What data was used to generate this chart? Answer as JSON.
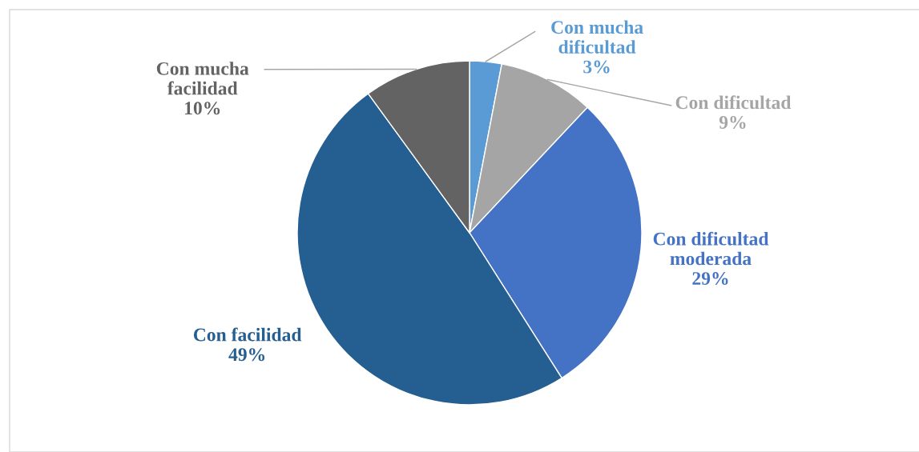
{
  "chart_data": {
    "type": "pie",
    "categories": [
      "Con mucha\ndificultad",
      "Con dificultad",
      "Con dificultad\nmoderada",
      "Con facilidad",
      "Con mucha\nfacilidad"
    ],
    "values": [
      3,
      9,
      29,
      49,
      10
    ],
    "colors": [
      "#5b9bd5",
      "#a5a5a5",
      "#4472c4",
      "#255e91",
      "#636363"
    ],
    "value_labels": [
      "3%",
      "9%",
      "29%",
      "49%",
      "10%"
    ],
    "legend": false
  }
}
